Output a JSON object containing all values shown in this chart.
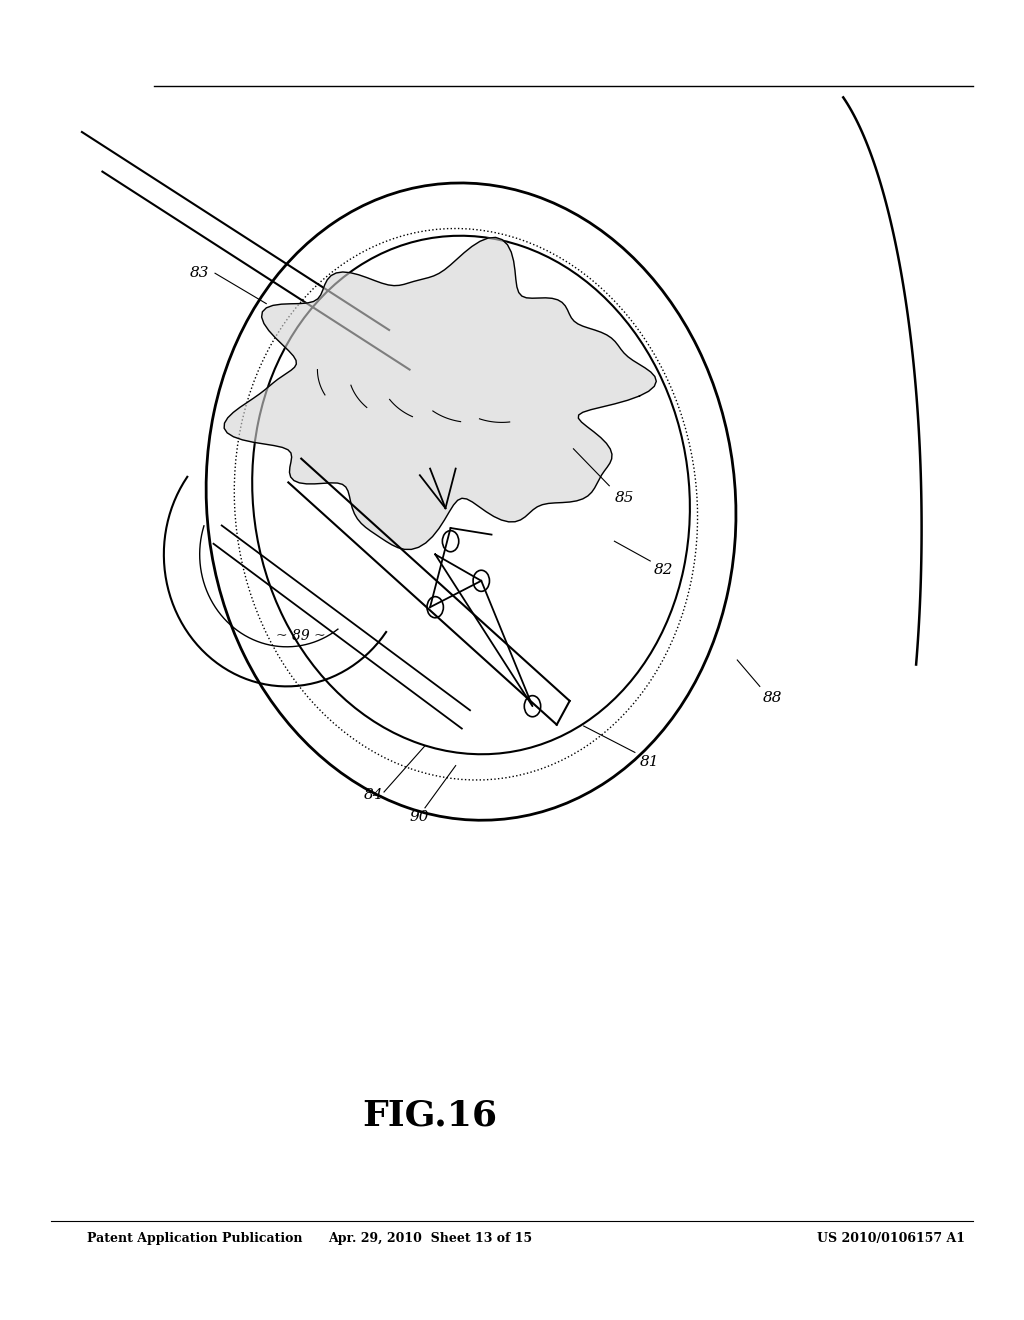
{
  "title": "FIG.16",
  "header_left": "Patent Application Publication",
  "header_center": "Apr. 29, 2010  Sheet 13 of 15",
  "header_right": "US 2010/0106157 A1",
  "background_color": "#ffffff"
}
